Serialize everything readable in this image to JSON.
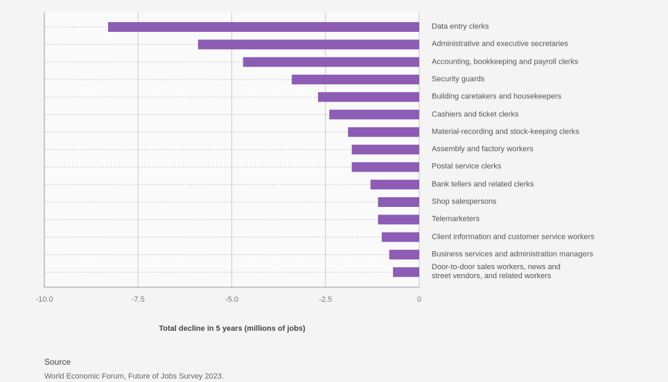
{
  "chart_data": {
    "type": "bar",
    "orientation": "horizontal",
    "categories": [
      "Data entry clerks",
      "Administrative and executive secretaries",
      "Accounting, bookkeeping and payroll clerks",
      "Security guards",
      "Building caretakers and housekeepers",
      "Cashiers and ticket clerks",
      "Material-recording and stock-keeping clerks",
      "Assembly and factory workers",
      "Postal service clerks",
      "Bank tellers and related clerks",
      "Shop salespersons",
      "Telemarketers",
      "Client information and customer service workers",
      "Business services and administration managers",
      "Door-to-door sales workers, news and street vendors, and related workers"
    ],
    "values": [
      -8.3,
      -5.9,
      -4.7,
      -3.4,
      -2.7,
      -2.4,
      -1.9,
      -1.8,
      -1.8,
      -1.3,
      -1.1,
      -1.1,
      -1.0,
      -0.8,
      -0.7
    ],
    "xlabel": "Total decline in 5 years (millions of jobs)",
    "xlim": [
      -10,
      0
    ],
    "xticks": [
      "-10.0",
      "-7.5",
      "-5.0",
      "-2.5",
      "0"
    ],
    "xtick_values": [
      -10,
      -7.5,
      -5,
      -2.5,
      0
    ],
    "bar_color": "#8d5cb4",
    "grid": true
  },
  "source": {
    "heading": "Source",
    "text": "World Economic Forum, Future of Jobs Survey 2023."
  }
}
